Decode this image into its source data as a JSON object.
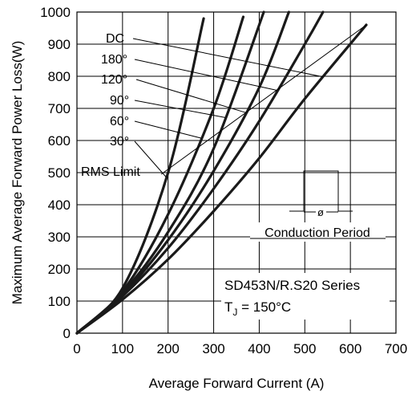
{
  "chart_data": {
    "type": "line",
    "xlabel": "Average Forward Current (A)",
    "ylabel": "Maximum Average Forward Power Loss(W)",
    "xlim": [
      0,
      700
    ],
    "ylim": [
      0,
      1000
    ],
    "x_ticks": [
      "0",
      "100",
      "200",
      "300",
      "400",
      "500",
      "600",
      "700"
    ],
    "y_ticks": [
      "0",
      "100",
      "200",
      "300",
      "400",
      "500",
      "600",
      "700",
      "800",
      "900",
      "1000"
    ],
    "grid": true,
    "series": [
      {
        "name": "DC",
        "x": [
          0,
          100,
          200,
          300,
          400,
          500,
          635
        ],
        "y": [
          0,
          105,
          230,
          380,
          545,
          730,
          960
        ]
      },
      {
        "name": "180°",
        "x": [
          0,
          100,
          200,
          300,
          400,
          500,
          540
        ],
        "y": [
          0,
          115,
          265,
          450,
          660,
          900,
          1000
        ]
      },
      {
        "name": "120°",
        "x": [
          0,
          100,
          200,
          300,
          400,
          465
        ],
        "y": [
          0,
          120,
          290,
          505,
          765,
          1000
        ]
      },
      {
        "name": "90°",
        "x": [
          0,
          100,
          200,
          300,
          410
        ],
        "y": [
          0,
          125,
          315,
          575,
          1000
        ]
      },
      {
        "name": "60°",
        "x": [
          0,
          100,
          200,
          300,
          365
        ],
        "y": [
          0,
          130,
          370,
          700,
          985
        ]
      },
      {
        "name": "30°",
        "x": [
          0,
          100,
          200,
          278
        ],
        "y": [
          0,
          140,
          500,
          980
        ]
      }
    ],
    "rms_limit": {
      "label": "RMS Limit",
      "x": [
        185,
        635
      ],
      "y": [
        500,
        960
      ]
    },
    "annotations": {
      "series_name": "SD453N/R.S20 Series",
      "tj_prefix": "T",
      "tj_sub": "J",
      "tj_value": " = 150°C",
      "conduction_label": "Conduction Period",
      "phi": "ø"
    }
  }
}
